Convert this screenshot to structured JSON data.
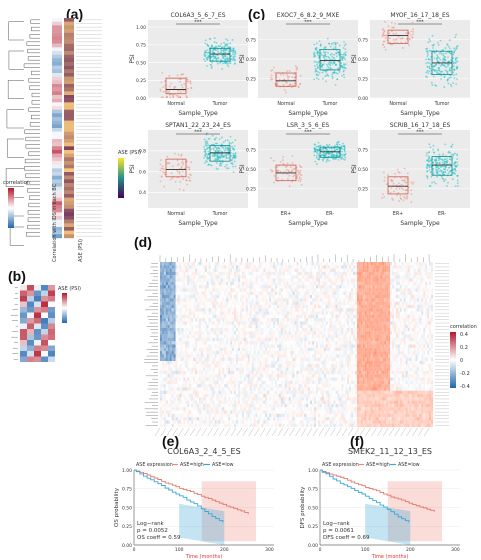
{
  "panels": {
    "a": {
      "letter": "(a)",
      "col_labels": [
        "Correlation with IDS in each BC",
        "ASE (PSI)"
      ],
      "legend_titles": [
        "correlation",
        "ASE (PSI)"
      ]
    },
    "b": {
      "letter": "(b)",
      "legend_title": "ASE (PSI)"
    },
    "c": {
      "letter": "(c)"
    },
    "d": {
      "letter": "(d)",
      "legend_title": "correlation",
      "legend_ticks": [
        "0.4",
        "0.2",
        "0",
        "-0.2",
        "-0.4"
      ]
    },
    "e": {
      "letter": "(e)"
    },
    "f": {
      "letter": "(f)"
    }
  },
  "chart_data": [
    {
      "type": "box",
      "id": "c1",
      "title": "COL6A3_5_6_7_ES",
      "xlabel": "Sample_Type",
      "ylabel": "PSI",
      "categories": [
        "Normal",
        "Tumor"
      ],
      "yticks": [
        "0.00",
        "0.25",
        "0.50",
        "0.75",
        "1.00"
      ],
      "ylim": [
        0,
        1.1
      ],
      "median": [
        0.12,
        0.62
      ],
      "q1": [
        0.06,
        0.52
      ],
      "q3": [
        0.28,
        0.7
      ],
      "sig": "***"
    },
    {
      "type": "box",
      "id": "c2",
      "title": "EXOC7_6_8.2_9_MXE",
      "xlabel": "Sample_Type",
      "ylabel": "PSI",
      "categories": [
        "Normal",
        "Tumor"
      ],
      "yticks": [
        "0.25",
        "0.50",
        "0.75"
      ],
      "ylim": [
        0,
        1.0
      ],
      "median": [
        0.22,
        0.48
      ],
      "q1": [
        0.15,
        0.36
      ],
      "q3": [
        0.32,
        0.62
      ],
      "sig": "***"
    },
    {
      "type": "box",
      "id": "c3",
      "title": "MYOF_16_17_18_ES",
      "xlabel": "Sample_Type",
      "ylabel": "PSI",
      "categories": [
        "Normal",
        "Tumor"
      ],
      "yticks": [
        "0.00",
        "0.25",
        "0.50",
        "0.75"
      ],
      "ylim": [
        0,
        1.0
      ],
      "median": [
        0.8,
        0.45
      ],
      "q1": [
        0.7,
        0.3
      ],
      "q3": [
        0.87,
        0.6
      ],
      "sig": "***"
    },
    {
      "type": "box",
      "id": "c4",
      "title": "SPTAN1_22_23_24_ES",
      "xlabel": "Sample_Type",
      "ylabel": "PSI",
      "categories": [
        "Normal",
        "Tumor"
      ],
      "yticks": [
        "0.4",
        "0.6",
        "0.8"
      ],
      "ylim": [
        0.25,
        1.0
      ],
      "median": [
        0.62,
        0.78
      ],
      "q1": [
        0.55,
        0.7
      ],
      "q3": [
        0.72,
        0.85
      ],
      "sig": "***"
    },
    {
      "type": "box",
      "id": "c5",
      "title": "LSR_3_5_6_ES",
      "xlabel": "Sample_Type",
      "ylabel": "PSI",
      "categories": [
        "ER+",
        "ER-"
      ],
      "yticks": [
        "0.25",
        "0.50",
        "0.75"
      ],
      "ylim": [
        0,
        1.0
      ],
      "median": [
        0.45,
        0.72
      ],
      "q1": [
        0.35,
        0.65
      ],
      "q3": [
        0.55,
        0.78
      ],
      "sig": "***"
    },
    {
      "type": "box",
      "id": "c6",
      "title": "SCRIB_16_17_18_ES",
      "xlabel": "Sample_Type",
      "ylabel": "PSI",
      "categories": [
        "ER+",
        "ER-"
      ],
      "yticks": [
        "0.25",
        "0.50",
        "0.75"
      ],
      "ylim": [
        0,
        1.0
      ],
      "median": [
        0.28,
        0.55
      ],
      "q1": [
        0.18,
        0.42
      ],
      "q3": [
        0.4,
        0.66
      ],
      "sig": "***"
    },
    {
      "type": "line",
      "id": "e",
      "title": "COL6A3_2_4_5_ES",
      "legend_title": "ASE expression",
      "series": [
        {
          "name": "ASE=high"
        },
        {
          "name": "ASE=low"
        }
      ],
      "ylabel": "OS probability",
      "xlabel": "Time (months)",
      "yticks": [
        "0.00",
        "0.25",
        "0.50",
        "0.75",
        "1.00"
      ],
      "xticks": [
        "0",
        "100",
        "200",
        "300"
      ],
      "xlim": [
        0,
        310
      ],
      "ylim": [
        0,
        1
      ],
      "stats": [
        "Log−rank",
        "p = 0.0052",
        "OS coeff = 0.59"
      ]
    },
    {
      "type": "line",
      "id": "f",
      "title": "SMEK2_11_12_13_ES",
      "legend_title": "ASE expression",
      "series": [
        {
          "name": "ASE=high"
        },
        {
          "name": "ASE=low"
        }
      ],
      "ylabel": "DFS probability",
      "xlabel": "Time (months)",
      "yticks": [
        "0.00",
        "0.25",
        "0.50",
        "0.75",
        "1.00"
      ],
      "xticks": [
        "0",
        "100",
        "200",
        "300"
      ],
      "xlim": [
        0,
        310
      ],
      "ylim": [
        0,
        1
      ],
      "stats": [
        "Log−rank",
        "p = 0.0061",
        "DFS coeff = 0.69"
      ]
    }
  ]
}
